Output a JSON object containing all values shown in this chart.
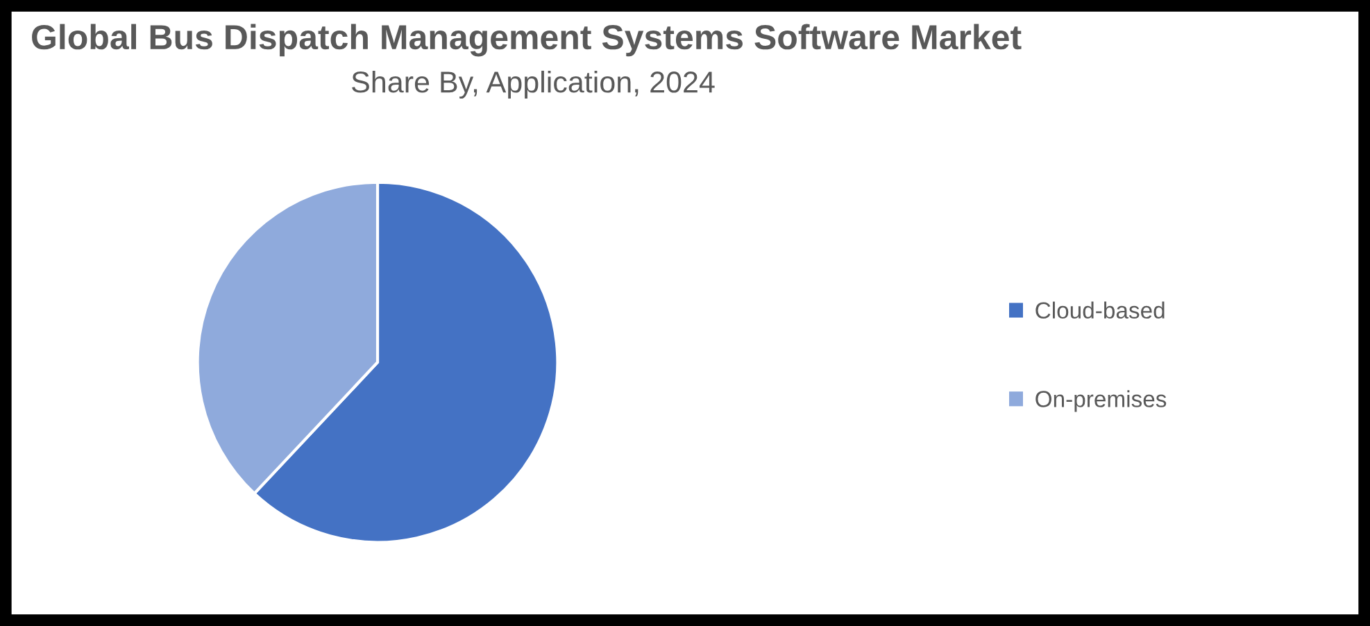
{
  "chart_data": {
    "type": "pie",
    "title": "Global Bus Dispatch Management Systems Software Market",
    "subtitle": "Share By, Application, 2024",
    "categories": [
      "Cloud-based",
      "On-premises"
    ],
    "values": [
      62,
      38
    ],
    "colors": [
      "#4472c4",
      "#8faadc"
    ],
    "legend": "right"
  }
}
